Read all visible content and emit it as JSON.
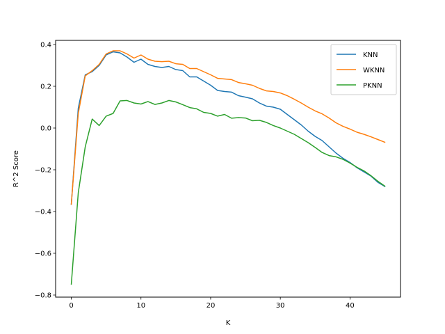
{
  "chart_data": {
    "type": "line",
    "title": "",
    "xlabel": "K",
    "ylabel": "R^2 Score",
    "xlim": [
      -2.25,
      47.25
    ],
    "ylim": [
      -0.81,
      0.42
    ],
    "xticks": [
      0,
      10,
      20,
      30,
      40
    ],
    "xtick_labels": [
      "0",
      "10",
      "20",
      "30",
      "40"
    ],
    "yticks": [
      -0.8,
      -0.6,
      -0.4,
      -0.2,
      0.0,
      0.2,
      0.4
    ],
    "ytick_labels": [
      "−0.8",
      "−0.6",
      "−0.4",
      "−0.2",
      "0.0",
      "0.2",
      "0.4"
    ],
    "grid": false,
    "legend_position": "top-right",
    "x": [
      0,
      1,
      2,
      3,
      4,
      5,
      6,
      7,
      8,
      9,
      10,
      11,
      12,
      13,
      14,
      15,
      16,
      17,
      18,
      19,
      20,
      21,
      22,
      23,
      24,
      25,
      26,
      27,
      28,
      29,
      30,
      31,
      32,
      33,
      34,
      35,
      36,
      37,
      38,
      39,
      40,
      41,
      42,
      43,
      44,
      45
    ],
    "series": [
      {
        "name": "KNN",
        "color": "#1f77b4",
        "values": [
          -0.365,
          0.095,
          0.255,
          0.27,
          0.3,
          0.35,
          0.365,
          0.36,
          0.34,
          0.315,
          0.33,
          0.305,
          0.295,
          0.29,
          0.295,
          0.28,
          0.275,
          0.245,
          0.245,
          0.225,
          0.205,
          0.18,
          0.175,
          0.172,
          0.155,
          0.148,
          0.14,
          0.12,
          0.105,
          0.1,
          0.09,
          0.065,
          0.04,
          0.015,
          -0.015,
          -0.04,
          -0.06,
          -0.09,
          -0.12,
          -0.145,
          -0.165,
          -0.19,
          -0.21,
          -0.23,
          -0.26,
          -0.28
        ]
      },
      {
        "name": "WKNN",
        "color": "#ff7f0e",
        "values": [
          -0.365,
          0.07,
          0.25,
          0.275,
          0.305,
          0.355,
          0.37,
          0.37,
          0.355,
          0.335,
          0.35,
          0.33,
          0.32,
          0.318,
          0.32,
          0.308,
          0.305,
          0.285,
          0.285,
          0.27,
          0.255,
          0.238,
          0.235,
          0.232,
          0.218,
          0.212,
          0.205,
          0.19,
          0.178,
          0.175,
          0.168,
          0.155,
          0.138,
          0.12,
          0.1,
          0.082,
          0.068,
          0.048,
          0.025,
          0.008,
          -0.005,
          -0.02,
          -0.03,
          -0.042,
          -0.055,
          -0.068
        ]
      },
      {
        "name": "PKNN",
        "color": "#2ca02c",
        "values": [
          -0.748,
          -0.31,
          -0.09,
          0.043,
          0.012,
          0.057,
          0.07,
          0.13,
          0.132,
          0.12,
          0.115,
          0.127,
          0.113,
          0.12,
          0.132,
          0.125,
          0.112,
          0.098,
          0.092,
          0.075,
          0.07,
          0.057,
          0.065,
          0.047,
          0.05,
          0.048,
          0.035,
          0.037,
          0.027,
          0.012,
          0.0,
          -0.015,
          -0.03,
          -0.05,
          -0.07,
          -0.093,
          -0.117,
          -0.132,
          -0.138,
          -0.15,
          -0.168,
          -0.188,
          -0.205,
          -0.228,
          -0.255,
          -0.278
        ]
      }
    ]
  }
}
